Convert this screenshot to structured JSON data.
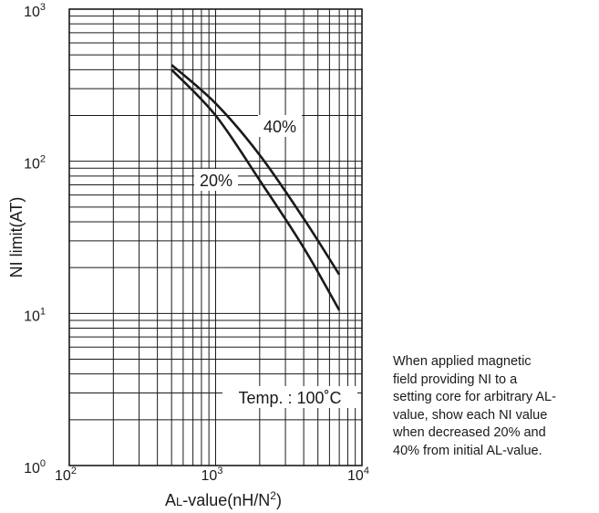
{
  "chart_data": {
    "type": "line",
    "title": "",
    "xlabel": "AL-value(nH/N2)",
    "ylabel": "NI limit(AT)",
    "x_scale": "log",
    "y_scale": "log",
    "xlim": [
      100,
      10000
    ],
    "ylim": [
      1,
      1000
    ],
    "grid": true,
    "x_ticks": [
      {
        "value": 100,
        "base": "10",
        "exp": "2"
      },
      {
        "value": 1000,
        "base": "10",
        "exp": "3"
      },
      {
        "value": 10000,
        "base": "10",
        "exp": "4"
      }
    ],
    "y_ticks": [
      {
        "value": 1,
        "base": "10",
        "exp": "0"
      },
      {
        "value": 10,
        "base": "10",
        "exp": "1"
      },
      {
        "value": 100,
        "base": "10",
        "exp": "2"
      },
      {
        "value": 1000,
        "base": "10",
        "exp": "3"
      }
    ],
    "series": [
      {
        "name": "40%",
        "x": [
          500,
          1000,
          2000,
          4000,
          7000
        ],
        "y": [
          430,
          240,
          110,
          42,
          18
        ]
      },
      {
        "name": "20%",
        "x": [
          500,
          1000,
          2000,
          4000,
          7000
        ],
        "y": [
          400,
          200,
          75,
          27,
          10.5
        ]
      }
    ],
    "annotation": "Temp. : 100˚C"
  },
  "axis_title": {
    "x_prefix": "A",
    "x_sub": "L",
    "x_main": "-value(nH/N",
    "x_sup": "2",
    "x_suffix": ")"
  },
  "note_lines": [
    "When applied magnetic",
    "field providing NI to a",
    "setting core for arbitrary AL-",
    "value, show each NI value",
    "when decreased 20% and",
    "40% from initial AL-value."
  ]
}
